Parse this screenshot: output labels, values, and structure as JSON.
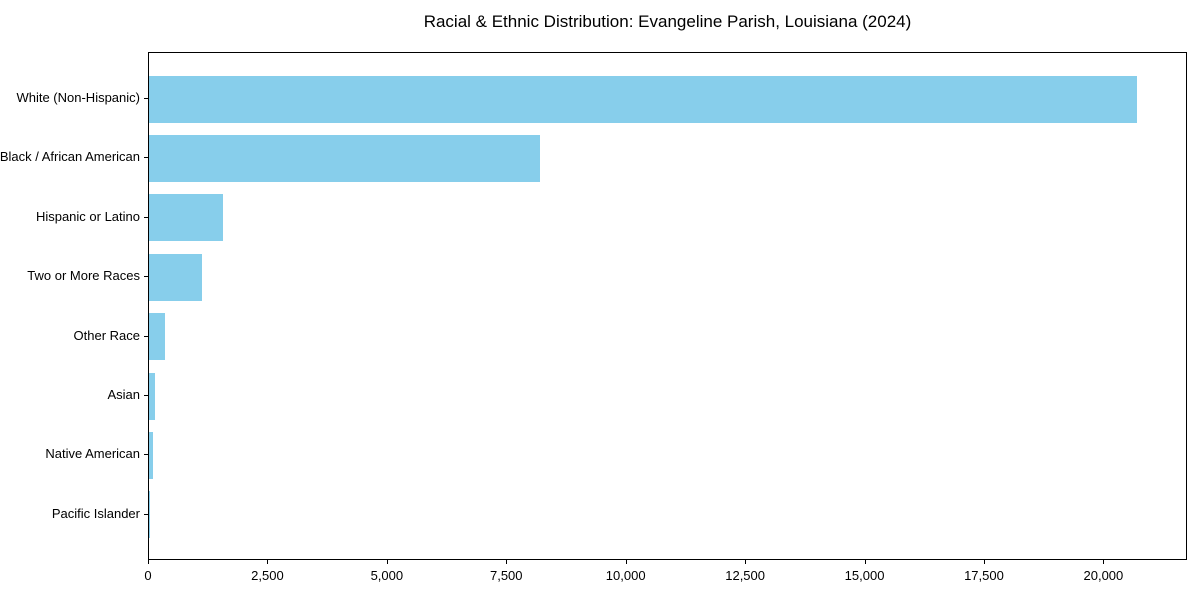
{
  "chart_data": {
    "type": "bar",
    "orientation": "horizontal",
    "title": "Racial & Ethnic Distribution: Evangeline Parish, Louisiana (2024)",
    "categories": [
      "White (Non-Hispanic)",
      "Black / African American",
      "Hispanic or Latino",
      "Two or More Races",
      "Other Race",
      "Asian",
      "Native American",
      "Pacific Islander"
    ],
    "values": [
      20690,
      8180,
      1550,
      1110,
      335,
      125,
      85,
      5
    ],
    "xlabel": "",
    "ylabel": "",
    "xlim": [
      0,
      21750
    ],
    "x_tick_values": [
      0,
      2500,
      5000,
      7500,
      10000,
      12500,
      15000,
      17500,
      20000
    ],
    "x_tick_labels": [
      "0",
      "2,500",
      "5,000",
      "7,500",
      "10,000",
      "12,500",
      "15,000",
      "17,500",
      "20,000"
    ],
    "bar_color": "#87CEEB",
    "frame_color": "#000000",
    "background_color": "#ffffff",
    "grid": false,
    "legend": "none"
  }
}
